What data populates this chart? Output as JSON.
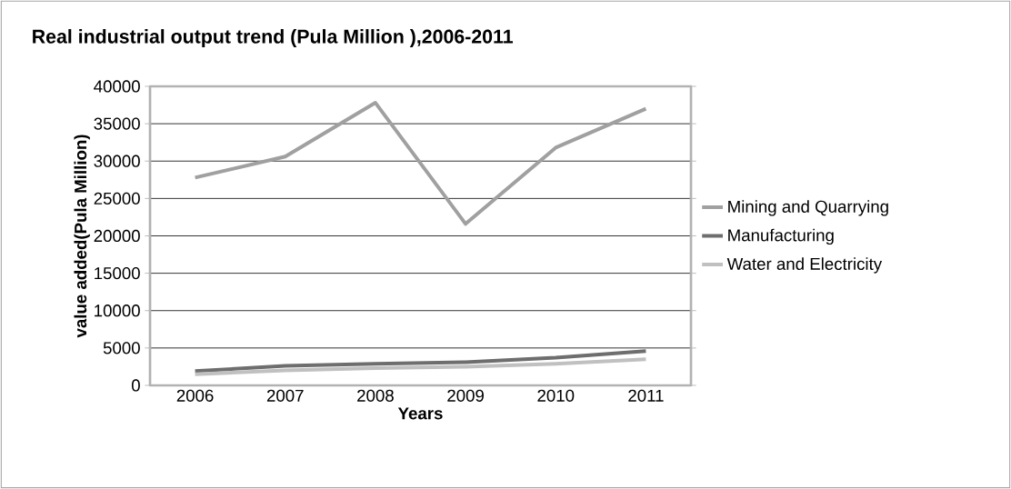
{
  "chart_data": {
    "type": "line",
    "title": "Real industrial output trend (Pula Million ),2006-2011",
    "xlabel": "Years",
    "ylabel": "value added(Pula Million)",
    "categories": [
      "2006",
      "2007",
      "2008",
      "2009",
      "2010",
      "2011"
    ],
    "series": [
      {
        "name": "Mining and Quarrying",
        "color": "#a0a0a0",
        "values": [
          27800,
          30600,
          37800,
          21600,
          31800,
          37000
        ]
      },
      {
        "name": "Manufacturing",
        "color": "#6e6e6e",
        "values": [
          1900,
          2600,
          2900,
          3100,
          3700,
          4600
        ]
      },
      {
        "name": "Water and Electricity",
        "color": "#c0c0c0",
        "values": [
          1500,
          2000,
          2300,
          2500,
          2900,
          3500
        ]
      }
    ],
    "ylim": [
      0,
      40000
    ],
    "yticks": [
      0,
      5000,
      10000,
      15000,
      20000,
      25000,
      30000,
      35000,
      40000
    ],
    "grid": "y",
    "legend": "right",
    "marker": "none",
    "line_style": "solid"
  }
}
